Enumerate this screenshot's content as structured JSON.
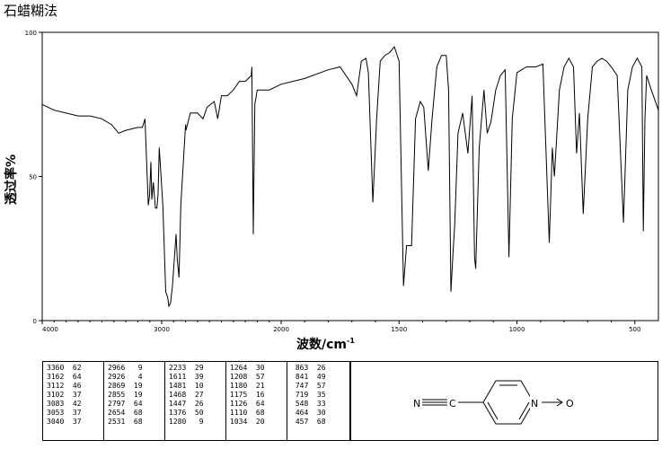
{
  "page": {
    "title": "石蜡糊法"
  },
  "chart_data": {
    "type": "line",
    "title": "石蜡糊法",
    "xlabel": "波数/cm",
    "xlabel_sup": "-1",
    "ylabel": "透过率%",
    "xlim": [
      4000,
      400
    ],
    "ylim": [
      0,
      100
    ],
    "x_ticks": [
      4000,
      3000,
      2000,
      1500,
      1000,
      500
    ],
    "y_ticks": [
      0,
      50,
      100
    ],
    "grid": false,
    "series": [
      {
        "points": [
          [
            4000,
            75
          ],
          [
            3900,
            73
          ],
          [
            3800,
            72
          ],
          [
            3700,
            71
          ],
          [
            3600,
            71
          ],
          [
            3500,
            70
          ],
          [
            3420,
            68
          ],
          [
            3360,
            65
          ],
          [
            3300,
            66
          ],
          [
            3200,
            67
          ],
          [
            3162,
            67
          ],
          [
            3140,
            70
          ],
          [
            3112,
            40
          ],
          [
            3102,
            43
          ],
          [
            3090,
            55
          ],
          [
            3083,
            42
          ],
          [
            3070,
            48
          ],
          [
            3053,
            39
          ],
          [
            3040,
            39
          ],
          [
            3030,
            44
          ],
          [
            3020,
            60
          ],
          [
            2990,
            40
          ],
          [
            2966,
            10
          ],
          [
            2950,
            8
          ],
          [
            2940,
            5
          ],
          [
            2926,
            6
          ],
          [
            2910,
            12
          ],
          [
            2880,
            30
          ],
          [
            2869,
            21
          ],
          [
            2855,
            15
          ],
          [
            2840,
            40
          ],
          [
            2800,
            68
          ],
          [
            2797,
            66
          ],
          [
            2760,
            72
          ],
          [
            2700,
            72
          ],
          [
            2654,
            70
          ],
          [
            2620,
            74
          ],
          [
            2560,
            76
          ],
          [
            2531,
            70
          ],
          [
            2500,
            78
          ],
          [
            2450,
            78
          ],
          [
            2400,
            80
          ],
          [
            2350,
            83
          ],
          [
            2300,
            83
          ],
          [
            2250,
            85
          ],
          [
            2245,
            88
          ],
          [
            2233,
            30
          ],
          [
            2220,
            75
          ],
          [
            2200,
            80
          ],
          [
            2100,
            80
          ],
          [
            2000,
            82
          ],
          [
            1900,
            84
          ],
          [
            1800,
            87
          ],
          [
            1750,
            88
          ],
          [
            1700,
            82
          ],
          [
            1680,
            78
          ],
          [
            1660,
            90
          ],
          [
            1640,
            91
          ],
          [
            1630,
            86
          ],
          [
            1611,
            41
          ],
          [
            1595,
            70
          ],
          [
            1580,
            90
          ],
          [
            1560,
            92
          ],
          [
            1540,
            93
          ],
          [
            1520,
            95
          ],
          [
            1500,
            90
          ],
          [
            1481,
            12
          ],
          [
            1468,
            26
          ],
          [
            1447,
            26
          ],
          [
            1430,
            70
          ],
          [
            1410,
            76
          ],
          [
            1395,
            74
          ],
          [
            1376,
            52
          ],
          [
            1360,
            70
          ],
          [
            1340,
            88
          ],
          [
            1320,
            92
          ],
          [
            1300,
            92
          ],
          [
            1290,
            80
          ],
          [
            1280,
            10
          ],
          [
            1270,
            25
          ],
          [
            1264,
            33
          ],
          [
            1250,
            65
          ],
          [
            1230,
            72
          ],
          [
            1208,
            58
          ],
          [
            1190,
            78
          ],
          [
            1180,
            22
          ],
          [
            1175,
            18
          ],
          [
            1160,
            60
          ],
          [
            1140,
            80
          ],
          [
            1126,
            65
          ],
          [
            1110,
            69
          ],
          [
            1090,
            80
          ],
          [
            1070,
            85
          ],
          [
            1050,
            87
          ],
          [
            1034,
            22
          ],
          [
            1020,
            70
          ],
          [
            1000,
            86
          ],
          [
            960,
            88
          ],
          [
            920,
            88
          ],
          [
            890,
            89
          ],
          [
            863,
            27
          ],
          [
            850,
            60
          ],
          [
            841,
            50
          ],
          [
            820,
            80
          ],
          [
            800,
            88
          ],
          [
            780,
            91
          ],
          [
            760,
            88
          ],
          [
            747,
            58
          ],
          [
            735,
            72
          ],
          [
            719,
            37
          ],
          [
            700,
            70
          ],
          [
            680,
            88
          ],
          [
            660,
            90
          ],
          [
            640,
            91
          ],
          [
            620,
            90
          ],
          [
            600,
            88
          ],
          [
            575,
            85
          ],
          [
            548,
            34
          ],
          [
            530,
            80
          ],
          [
            510,
            88
          ],
          [
            490,
            91
          ],
          [
            470,
            88
          ],
          [
            464,
            31
          ],
          [
            457,
            70
          ],
          [
            450,
            85
          ],
          [
            430,
            80
          ],
          [
            400,
            73
          ]
        ]
      }
    ],
    "peak_table": [
      [
        [
          "3360",
          "62"
        ],
        [
          "3162",
          "64"
        ],
        [
          "3112",
          "46"
        ],
        [
          "3102",
          "37"
        ],
        [
          "3083",
          "42"
        ],
        [
          "3053",
          "37"
        ],
        [
          "3040",
          "37"
        ]
      ],
      [
        [
          "2966",
          "9"
        ],
        [
          "2926",
          "4"
        ],
        [
          "2869",
          "19"
        ],
        [
          "2855",
          "19"
        ],
        [
          "2797",
          "64"
        ],
        [
          "2654",
          "68"
        ],
        [
          "2531",
          "68"
        ]
      ],
      [
        [
          "2233",
          "29"
        ],
        [
          "1611",
          "39"
        ],
        [
          "1481",
          "10"
        ],
        [
          "1468",
          "27"
        ],
        [
          "1447",
          "26"
        ],
        [
          "1376",
          "50"
        ],
        [
          "1280",
          "9"
        ]
      ],
      [
        [
          "1264",
          "30"
        ],
        [
          "1208",
          "57"
        ],
        [
          "1180",
          "21"
        ],
        [
          "1175",
          "16"
        ],
        [
          "1126",
          "64"
        ],
        [
          "1110",
          "68"
        ],
        [
          "1034",
          "20"
        ]
      ],
      [
        [
          "863",
          "26"
        ],
        [
          "841",
          "49"
        ],
        [
          "747",
          "57"
        ],
        [
          "719",
          "35"
        ],
        [
          "548",
          "33"
        ],
        [
          "464",
          "30"
        ],
        [
          "457",
          "68"
        ]
      ]
    ]
  },
  "structure": {
    "atom_n_nitrile": "N",
    "atom_c": "C",
    "atom_n_ring": "N",
    "atom_o": "O"
  }
}
